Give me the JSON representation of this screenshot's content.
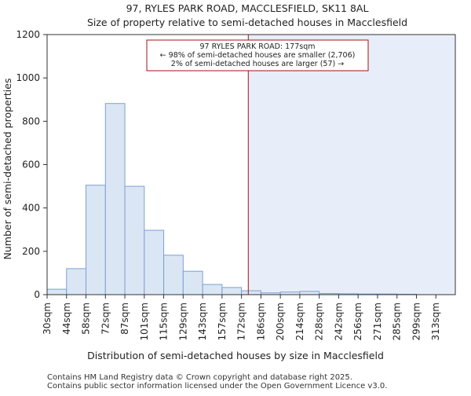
{
  "chart_data": {
    "type": "bar",
    "title": "97, RYLES PARK ROAD, MACCLESFIELD, SK11 8AL",
    "subtitle": "Size of property relative to semi-detached houses in Macclesfield",
    "xlabel": "Distribution of semi-detached houses by size in Macclesfield",
    "ylabel": "Number of semi-detached properties",
    "ylim": [
      0,
      1200
    ],
    "yticks": [
      0,
      200,
      400,
      600,
      800,
      1000,
      1200
    ],
    "categories": [
      "30sqm",
      "44sqm",
      "58sqm",
      "72sqm",
      "87sqm",
      "101sqm",
      "115sqm",
      "129sqm",
      "143sqm",
      "157sqm",
      "172sqm",
      "186sqm",
      "200sqm",
      "214sqm",
      "228sqm",
      "242sqm",
      "256sqm",
      "271sqm",
      "285sqm",
      "299sqm",
      "313sqm"
    ],
    "values": [
      25,
      120,
      505,
      882,
      500,
      297,
      182,
      108,
      47,
      33,
      18,
      8,
      12,
      15,
      5,
      4,
      3,
      3,
      2,
      0,
      0
    ],
    "bar_color": "#dbe6f4",
    "bar_edge_color": "#7ba1cf",
    "highlight_color": "#e8eef9",
    "marker_color": "#aa1111",
    "marker_value": 177,
    "marker_bin_index": 10.35,
    "annotation": {
      "line1": "97 RYLES PARK ROAD: 177sqm",
      "line2": "← 98% of semi-detached houses are smaller (2,706)",
      "line3": "2% of semi-detached houses are larger (57) →"
    },
    "grid": false
  },
  "footer": {
    "line1": "Contains HM Land Registry data © Crown copyright and database right 2025.",
    "line2": "Contains public sector information licensed under the Open Government Licence v3.0."
  }
}
